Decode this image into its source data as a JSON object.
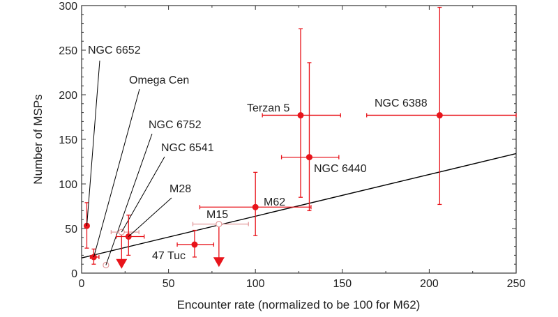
{
  "chart_data": {
    "type": "scatter",
    "title": "",
    "xlabel": "Encounter rate (normalized to be 100 for M62)",
    "ylabel": "Number of MSPs",
    "xlim": [
      0,
      250
    ],
    "ylim": [
      0,
      300
    ],
    "xticks": [
      "0",
      "50",
      "100",
      "150",
      "200",
      "250"
    ],
    "yticks": [
      "0",
      "50",
      "100",
      "150",
      "200",
      "250",
      "300"
    ],
    "grid": false,
    "colors": {
      "points": "#e8141b",
      "upper_limits": "#e39a9c",
      "trend": "#000000"
    },
    "points": [
      {
        "name": "NGC 6652",
        "x": 3,
        "y": 53,
        "xerr": [
          2,
          4
        ],
        "yerr": [
          28,
          79
        ]
      },
      {
        "name": "Omega Cen",
        "x": 7,
        "y": 18,
        "xerr": [
          5,
          10
        ],
        "yerr": [
          10,
          27
        ]
      },
      {
        "name": "M28",
        "x": 27,
        "y": 41,
        "xerr": [
          20,
          36
        ],
        "yerr": [
          20,
          65
        ]
      },
      {
        "name": "47 Tuc",
        "x": 65,
        "y": 32,
        "xerr": [
          55,
          76
        ],
        "yerr": [
          18,
          48
        ]
      },
      {
        "name": "M62",
        "x": 100,
        "y": 74,
        "xerr": [
          68,
          132
        ],
        "yerr": [
          42,
          113
        ]
      },
      {
        "name": "Terzan 5",
        "x": 126,
        "y": 177,
        "xerr": [
          104,
          149
        ],
        "yerr": [
          85,
          274
        ]
      },
      {
        "name": "NGC 6440",
        "x": 131,
        "y": 130,
        "xerr": [
          115,
          148
        ],
        "yerr": [
          70,
          236
        ]
      },
      {
        "name": "NGC 6388",
        "x": 206,
        "y": 177,
        "xerr": [
          164,
          250
        ],
        "yerr": [
          77,
          298
        ]
      }
    ],
    "upper_limits": [
      {
        "name": "NGC 6752",
        "x": 14,
        "y": 9
      },
      {
        "name": "NGC 6541",
        "x": 23,
        "y": 46,
        "xerr": [
          17,
          33
        ],
        "arrow_to": 8
      },
      {
        "name": "M15",
        "x": 79,
        "y": 55,
        "xerr": [
          64,
          96
        ],
        "arrow_to": 10
      }
    ],
    "trend_line": {
      "x": [
        0,
        250
      ],
      "y": [
        17,
        134
      ]
    }
  }
}
